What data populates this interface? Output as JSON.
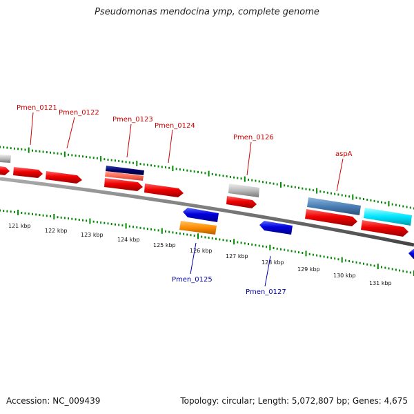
{
  "title": "Pseudomonas mendocina ymp, complete genome",
  "footer": {
    "accession": "Accession: NC_009439",
    "summary": "Topology: circular; Length: 5,072,807 bp; Genes: 4,675"
  },
  "kbp_labels": [
    "121 kbp",
    "122 kbp",
    "123 kbp",
    "124 kbp",
    "125 kbp",
    "126 kbp",
    "127 kbp",
    "128 kbp",
    "129 kbp",
    "130 kbp",
    "131 kbp"
  ],
  "gene_labels_top": [
    {
      "name": "Pmen_0121",
      "color": "#cc0000"
    },
    {
      "name": "Pmen_0122",
      "color": "#cc0000"
    },
    {
      "name": "Pmen_0123",
      "color": "#cc0000"
    },
    {
      "name": "Pmen_0124",
      "color": "#cc0000"
    },
    {
      "name": "Pmen_0126",
      "color": "#cc0000"
    },
    {
      "name": "aspA",
      "color": "#cc0000"
    }
  ],
  "gene_labels_bottom": [
    {
      "name": "Pmen_0125",
      "color": "#0000aa"
    },
    {
      "name": "Pmen_0127",
      "color": "#0000aa"
    }
  ],
  "colors": {
    "forward_gene": "#ee0000",
    "reverse_gene": "#0000dd",
    "backbone": "#777777",
    "tick": "#008800",
    "gray_feature": "#bbbbbb",
    "navy_feature": "#000066",
    "salmon_feature": "#ff6b55",
    "orange_feature": "#ff8c00",
    "steel_feature": "#4a7fb5",
    "cyan_feature": "#00e5ff"
  }
}
